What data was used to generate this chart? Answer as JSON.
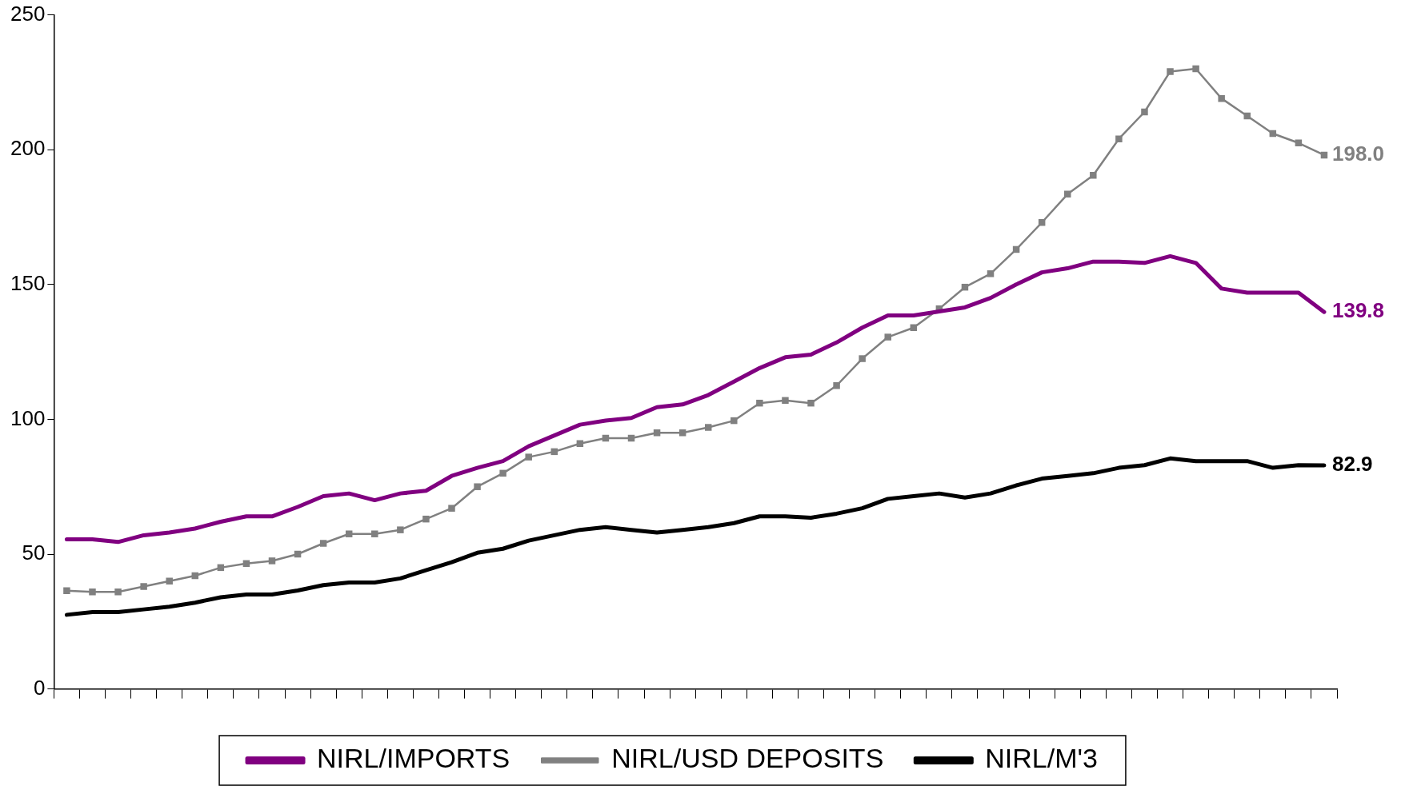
{
  "chart_data": {
    "type": "line",
    "categories": [
      null,
      null,
      null,
      null,
      null,
      null,
      null,
      null,
      null,
      null,
      null,
      null,
      null,
      null,
      null,
      null,
      null,
      null,
      null,
      null,
      null,
      null,
      null,
      null,
      null,
      null,
      null,
      null,
      null,
      null,
      null,
      null,
      null,
      null,
      null,
      null,
      null,
      null,
      null,
      null,
      null,
      null,
      null,
      null,
      null,
      null,
      null,
      null,
      null,
      null
    ],
    "series": [
      {
        "name": "NIRL/IMPORTS",
        "color": "#800080",
        "marker": "none",
        "values": [
          55.5,
          55.5,
          54.5,
          57,
          58,
          59.5,
          62,
          64,
          64,
          67.5,
          71.5,
          72.5,
          70,
          72.5,
          73.5,
          79,
          82,
          84.5,
          90,
          94,
          98,
          99.5,
          100.5,
          104.5,
          105.5,
          109,
          114,
          119,
          123,
          124,
          128.5,
          134,
          138.5,
          138.5,
          140,
          141.5,
          145,
          150,
          154.5,
          156,
          158.5,
          158.5,
          158,
          160.5,
          158,
          148.5,
          147,
          147,
          147,
          139.8
        ],
        "value_labels": [
          null,
          null,
          null,
          null,
          null,
          null,
          null,
          null,
          null,
          null,
          null,
          null,
          null,
          null,
          null,
          null,
          null,
          null,
          null,
          null,
          null,
          null,
          null,
          null,
          null,
          null,
          null,
          null,
          null,
          null,
          null,
          null,
          null,
          null,
          null,
          null,
          null,
          null,
          null,
          null,
          null,
          null,
          null,
          null,
          null,
          null,
          null,
          null,
          null,
          "139.8"
        ]
      },
      {
        "name": "NIRL/USD DEPOSITS",
        "color": "#808080",
        "marker": "square",
        "values": [
          36.4,
          36,
          36,
          38,
          40,
          42,
          45,
          46.5,
          47.5,
          50,
          54,
          57.5,
          57.5,
          59,
          63,
          67,
          75,
          80,
          86,
          88,
          91,
          93,
          93,
          95,
          95,
          97,
          99.5,
          106,
          107,
          106,
          112.5,
          122.5,
          130.5,
          134,
          141,
          149,
          154,
          163,
          173,
          183.5,
          190.5,
          204,
          214,
          229,
          230,
          219,
          212.5,
          206,
          202.5,
          198
        ],
        "value_labels": [
          null,
          null,
          null,
          null,
          null,
          null,
          null,
          null,
          null,
          null,
          null,
          null,
          null,
          null,
          null,
          null,
          null,
          null,
          null,
          null,
          null,
          null,
          null,
          null,
          null,
          null,
          null,
          null,
          null,
          null,
          null,
          null,
          null,
          null,
          null,
          null,
          null,
          null,
          null,
          null,
          null,
          null,
          null,
          null,
          null,
          null,
          null,
          null,
          null,
          "198.0"
        ]
      },
      {
        "name": "NIRL/M'3",
        "color": "#000000",
        "marker": "none",
        "values": [
          27.5,
          28.5,
          28.5,
          29.5,
          30.5,
          32,
          34,
          35,
          35,
          36.5,
          38.5,
          39.5,
          39.5,
          41,
          44,
          47,
          50.5,
          52,
          55,
          57,
          59,
          60,
          59,
          58,
          59,
          60,
          61.5,
          64,
          64,
          63.5,
          65,
          67,
          70.5,
          71.5,
          72.5,
          71,
          72.5,
          75.5,
          78,
          79,
          80,
          82,
          83,
          85.5,
          84.5,
          84.5,
          84.5,
          82,
          83,
          82.9
        ],
        "value_labels": [
          null,
          null,
          null,
          null,
          null,
          null,
          null,
          null,
          null,
          null,
          null,
          null,
          null,
          null,
          null,
          null,
          null,
          null,
          null,
          null,
          null,
          null,
          null,
          null,
          null,
          null,
          null,
          null,
          null,
          null,
          null,
          null,
          null,
          null,
          null,
          null,
          null,
          null,
          null,
          null,
          null,
          null,
          null,
          null,
          null,
          null,
          null,
          null,
          null,
          "82.9"
        ]
      }
    ],
    "ylim": [
      0,
      250
    ],
    "yticks": [
      0,
      50,
      100,
      150,
      200,
      250
    ],
    "grid": false,
    "legend": "bottom",
    "line_style": "solid"
  }
}
